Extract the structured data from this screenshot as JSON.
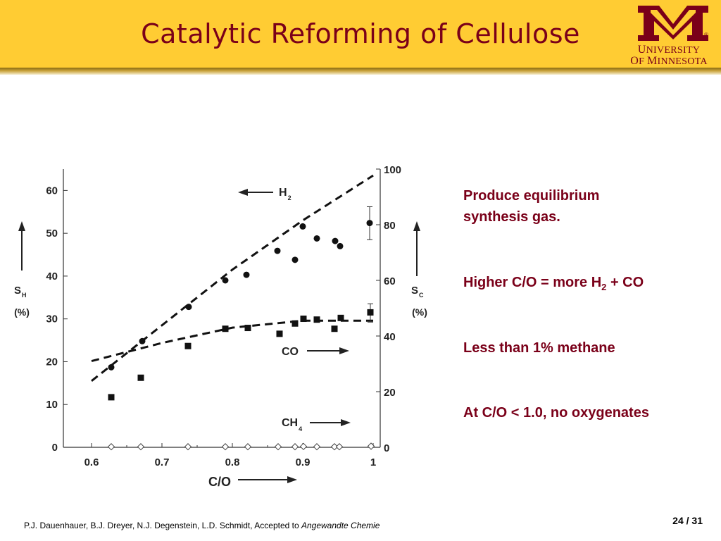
{
  "slide": {
    "title": "Catalytic Reforming of Cellulose",
    "logo": {
      "university_line1_cap": "U",
      "university_line1_rest": "NIVERSITY",
      "university_line2_cap1": "O",
      "university_line2_rest1": "F ",
      "university_line2_cap2": "M",
      "university_line2_rest2": "INNESOTA",
      "registered_mark": "®",
      "colors": {
        "maroon": "#7a0019",
        "gold": "#ffcc33"
      }
    },
    "bullets": [
      {
        "lines": [
          "Produce equilibrium",
          "synthesis gas."
        ]
      },
      {
        "prefix": "Higher C/O = more H",
        "subscript": "2",
        "suffix": " + CO"
      },
      {
        "text": "Less than 1% methane"
      },
      {
        "text": "At C/O < 1.0, no oxygenates"
      }
    ],
    "footer": {
      "citation": "P.J. Dauenhauer, B.J. Dreyer, N.J. Degenstein, L.D. Schmidt, Accepted to ",
      "journal": "Angewandte Chemie"
    },
    "page_number": "24 / 31"
  },
  "chart_data": {
    "type": "scatter",
    "xlabel": "C/O",
    "x_ticks": [
      "0.6",
      "0.7",
      "0.8",
      "0.9",
      "1"
    ],
    "xlim": [
      0.56,
      1.01
    ],
    "left_axis": {
      "label_main": "S",
      "label_sub": "H",
      "label_unit": "(%)",
      "ylim": [
        0,
        65
      ],
      "ticks": [
        "0",
        "10",
        "20",
        "30",
        "40",
        "50",
        "60"
      ]
    },
    "right_axis": {
      "label_main": "S",
      "label_sub": "C",
      "label_unit": "(%)",
      "ylim": [
        0,
        100
      ],
      "ticks": [
        "0",
        "20",
        "40",
        "60",
        "80",
        "100"
      ]
    },
    "series": [
      {
        "name": "H2",
        "label_main": "H",
        "label_sub": "2",
        "axis": "left",
        "marker": "circle",
        "x": [
          0.628,
          0.672,
          0.738,
          0.79,
          0.82,
          0.864,
          0.889,
          0.9,
          0.92,
          0.946,
          0.953,
          0.995
        ],
        "y": [
          18.7,
          24.8,
          32.8,
          39.0,
          40.3,
          45.9,
          43.8,
          51.6,
          48.8,
          48.2,
          47.0,
          52.4
        ],
        "error_bar": {
          "x": 0.995,
          "low": 48.5,
          "high": 56.2
        }
      },
      {
        "name": "CO",
        "label_main": "CO",
        "axis": "right",
        "marker": "square",
        "x": [
          0.628,
          0.67,
          0.737,
          0.79,
          0.822,
          0.867,
          0.889,
          0.901,
          0.92,
          0.945,
          0.954,
          0.996
        ],
        "y": [
          18.0,
          25.0,
          36.4,
          42.6,
          42.9,
          40.8,
          44.5,
          46.2,
          45.9,
          42.6,
          46.5,
          48.5
        ],
        "error_bar": {
          "x": 0.996,
          "low": 45.0,
          "high": 51.6
        }
      },
      {
        "name": "CH4",
        "label_main": "CH",
        "label_sub": "4",
        "axis": "right",
        "marker": "open-diamond",
        "x": [
          0.628,
          0.67,
          0.737,
          0.79,
          0.822,
          0.865,
          0.889,
          0.901,
          0.92,
          0.945,
          0.952,
          0.997
        ],
        "y": [
          0.2,
          0.2,
          0.2,
          0.2,
          0.2,
          0.2,
          0.2,
          0.3,
          0.2,
          0.2,
          0.2,
          0.4
        ]
      }
    ],
    "trend_lines": [
      {
        "series": "H2",
        "axis": "left",
        "x": [
          0.6,
          0.7,
          0.8,
          0.9,
          1.0
        ],
        "y": [
          15.5,
          28.5,
          41.5,
          53.0,
          63.5
        ]
      },
      {
        "series": "CO",
        "axis": "right",
        "x": [
          0.6,
          0.7,
          0.8,
          0.9,
          1.0
        ],
        "y": [
          31.0,
          37.5,
          43.0,
          45.5,
          45.5
        ]
      }
    ]
  }
}
